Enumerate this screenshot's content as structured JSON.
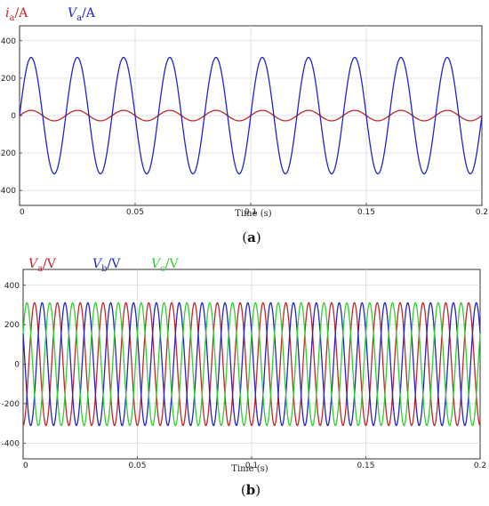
{
  "chart_data": [
    {
      "type": "line",
      "panel_label": "(a)",
      "xlabel": "Time (s)",
      "xlim": [
        0,
        0.2
      ],
      "ylim": [
        -480,
        480
      ],
      "x_ticks": [
        0,
        0.05,
        0.1,
        0.15,
        0.2
      ],
      "x_tick_labels": [
        "0",
        "0.05",
        "0.1",
        "0.15",
        "0.2"
      ],
      "y_ticks": [
        -400,
        -200,
        0,
        200,
        400
      ],
      "y_tick_labels": [
        "-400",
        "-200",
        "0",
        "200",
        "400"
      ],
      "grid": true,
      "legend_placement": "top-left",
      "series": [
        {
          "legend_var": "i",
          "legend_sub": "a",
          "legend_unit": "/A",
          "color": "#c0282b",
          "amplitude": 28,
          "frequency_hz": 50,
          "phase_deg": 0
        },
        {
          "legend_var": "V",
          "legend_sub": "a",
          "legend_unit": "/A",
          "color": "#2424c8",
          "amplitude": 311,
          "frequency_hz": 50,
          "phase_deg": 0
        }
      ]
    },
    {
      "type": "line",
      "panel_label": "(b)",
      "xlabel": "Time (s)",
      "xlim": [
        0,
        0.2
      ],
      "ylim": [
        -480,
        480
      ],
      "x_ticks": [
        0,
        0.05,
        0.1,
        0.15,
        0.2
      ],
      "x_tick_labels": [
        "0",
        "0.05",
        "0.1",
        "0.15",
        "0.2"
      ],
      "y_ticks": [
        -400,
        -200,
        0,
        200,
        400
      ],
      "y_tick_labels": [
        "-400",
        "-200",
        "0",
        "200",
        "400"
      ],
      "grid": true,
      "legend_placement": "top-left",
      "series": [
        {
          "legend_var": "V",
          "legend_sub": "a",
          "legend_unit": "/V",
          "color": "#c0282b",
          "amplitude": 311,
          "frequency_hz": 100,
          "phase_deg": -90
        },
        {
          "legend_var": "V",
          "legend_sub": "b",
          "legend_unit": "/V",
          "color": "#2424c8",
          "amplitude": 311,
          "frequency_hz": 100,
          "phase_deg": 150
        },
        {
          "legend_var": "V",
          "legend_sub": "c",
          "legend_unit": "/V",
          "color": "#2fd02f",
          "amplitude": 311,
          "frequency_hz": 100,
          "phase_deg": 30
        }
      ]
    }
  ]
}
